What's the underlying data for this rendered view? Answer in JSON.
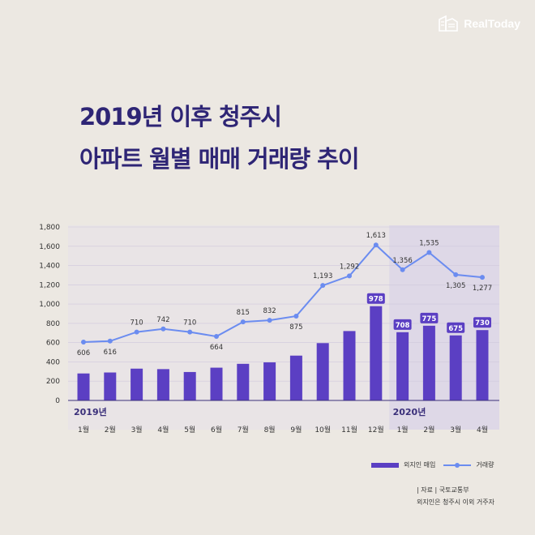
{
  "brand": {
    "name": "RealToday",
    "icon": "building-logo-icon"
  },
  "title": {
    "line1": "2019년 이후 청주시",
    "line2": "아파트 월별 매매 거래량 추이"
  },
  "colors": {
    "bar": "#5b3fc3",
    "line": "#6b8cf0",
    "title": "#2e2575",
    "highlight": "#d9d3e8"
  },
  "chart_data": {
    "type": "bar",
    "categories": [
      "1월",
      "2월",
      "3월",
      "4월",
      "5월",
      "6월",
      "7월",
      "8월",
      "9월",
      "10월",
      "11월",
      "12월",
      "1월",
      "2월",
      "3월",
      "4월"
    ],
    "year_labels": [
      {
        "label": "2019년",
        "start_index": 0
      },
      {
        "label": "2020년",
        "start_index": 12
      }
    ],
    "series": [
      {
        "name": "외지인 매입",
        "type": "bar",
        "values": [
          280,
          290,
          330,
          325,
          295,
          340,
          380,
          395,
          465,
          595,
          720,
          978,
          708,
          775,
          675,
          730
        ],
        "labeled_indices": [
          11,
          12,
          13,
          14,
          15
        ]
      },
      {
        "name": "거래량",
        "type": "line",
        "values": [
          606,
          616,
          710,
          742,
          710,
          664,
          815,
          832,
          875,
          1193,
          1292,
          1613,
          1356,
          1535,
          1305,
          1277
        ],
        "labels": [
          "606",
          "616",
          "710",
          "742",
          "710",
          "664",
          "815",
          "832",
          "875",
          "1,193",
          "1,292",
          "1,613",
          "1,356",
          "1,535",
          "1,305",
          "1,277"
        ]
      }
    ],
    "bar_labels": [
      "978",
      "708",
      "775",
      "675",
      "730"
    ],
    "yticks": [
      "0",
      "200",
      "400",
      "600",
      "800",
      "1,000",
      "1,200",
      "1,400",
      "1,600",
      "1,800"
    ],
    "ylim": [
      0,
      1800
    ],
    "grid": true,
    "highlight_range_start_index": 12,
    "legend_position": "bottom-right"
  },
  "notes": {
    "source": "| 자료 | 국토교통부",
    "footnote": "외지인은 청주시 이외 거주자"
  }
}
